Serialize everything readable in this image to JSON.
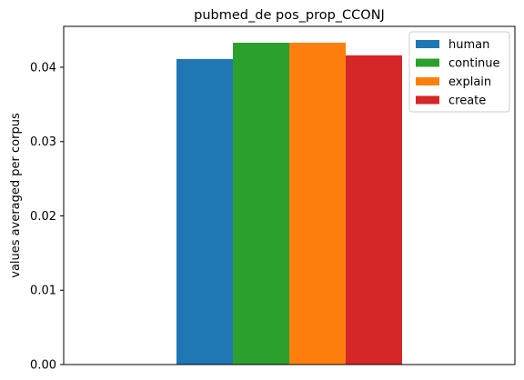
{
  "chart_data": {
    "type": "bar",
    "title": "pubmed_de pos_prop_CCONJ",
    "xlabel": "",
    "ylabel": "values averaged per corpus",
    "categories": [
      ""
    ],
    "ylim": [
      0,
      0.0455
    ],
    "yticks": [
      0.0,
      0.01,
      0.02,
      0.03,
      0.04
    ],
    "ytick_labels": [
      "0.00",
      "0.01",
      "0.02",
      "0.03",
      "0.04"
    ],
    "grid": false,
    "legend_position": "top-right",
    "series": [
      {
        "name": "human",
        "values": [
          0.0411
        ],
        "color": "#1f77b4"
      },
      {
        "name": "continue",
        "values": [
          0.0433
        ],
        "color": "#2ca02c"
      },
      {
        "name": "explain",
        "values": [
          0.0433
        ],
        "color": "#ff7f0e"
      },
      {
        "name": "create",
        "values": [
          0.0416
        ],
        "color": "#d62728"
      }
    ]
  }
}
